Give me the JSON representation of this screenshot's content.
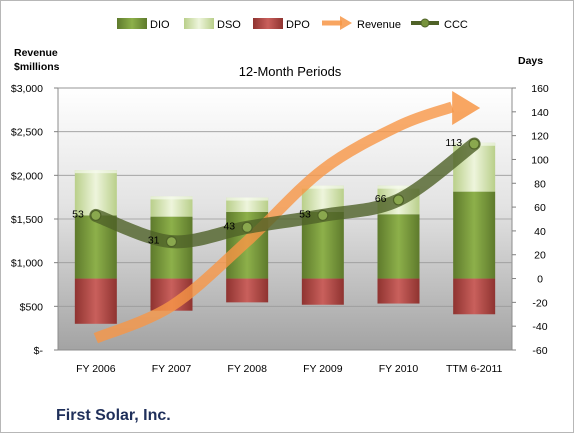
{
  "chart_data": {
    "type": "bar",
    "title": "12-Month Periods",
    "company": "First Solar, Inc.",
    "left_axis_label_line1": "Revenue",
    "left_axis_label_line2": "$millions",
    "right_axis_label": "Days",
    "categories": [
      "FY 2006",
      "FY 2007",
      "FY 2008",
      "FY 2009",
      "FY 2010",
      "TTM 6-2011"
    ],
    "y_left": {
      "min": 0,
      "max": 3000,
      "ticks": [
        "$-",
        "$500",
        "$1,000",
        "$1,500",
        "$2,000",
        "$2,500",
        "$3,000"
      ],
      "tick_values": [
        0,
        500,
        1000,
        1500,
        2000,
        2500,
        3000
      ]
    },
    "y_right": {
      "min": -60,
      "max": 160,
      "ticks": [
        "-60",
        "-40",
        "-20",
        "0",
        "20",
        "40",
        "60",
        "80",
        "100",
        "120",
        "140",
        "160"
      ],
      "tick_values": [
        -60,
        -40,
        -20,
        0,
        20,
        40,
        60,
        80,
        100,
        120,
        140,
        160
      ]
    },
    "series": [
      {
        "name": "DIO",
        "axis": "right",
        "color": "#77933c",
        "values": [
          53,
          52,
          56,
          56,
          54,
          73
        ]
      },
      {
        "name": "DSO",
        "axis": "right",
        "color": "#d7e4bd",
        "values": [
          38,
          17,
          12,
          22,
          24,
          41
        ]
      },
      {
        "name": "DPO",
        "axis": "right",
        "color": "#c0504d",
        "values": [
          -38,
          -27,
          -20,
          -22,
          -21,
          -30
        ]
      },
      {
        "name": "Revenue",
        "axis": "left",
        "color": "#f79646",
        "values": [
          135,
          504,
          1246,
          2066,
          2564,
          2760
        ]
      },
      {
        "name": "CCC",
        "axis": "right",
        "color": "#4f6228",
        "values": [
          53,
          31,
          43,
          53,
          66,
          113
        ]
      }
    ],
    "ccc_labels": [
      "53",
      "31",
      "43",
      "53",
      "66",
      "113"
    ],
    "grid": true,
    "legend_position": "top"
  }
}
